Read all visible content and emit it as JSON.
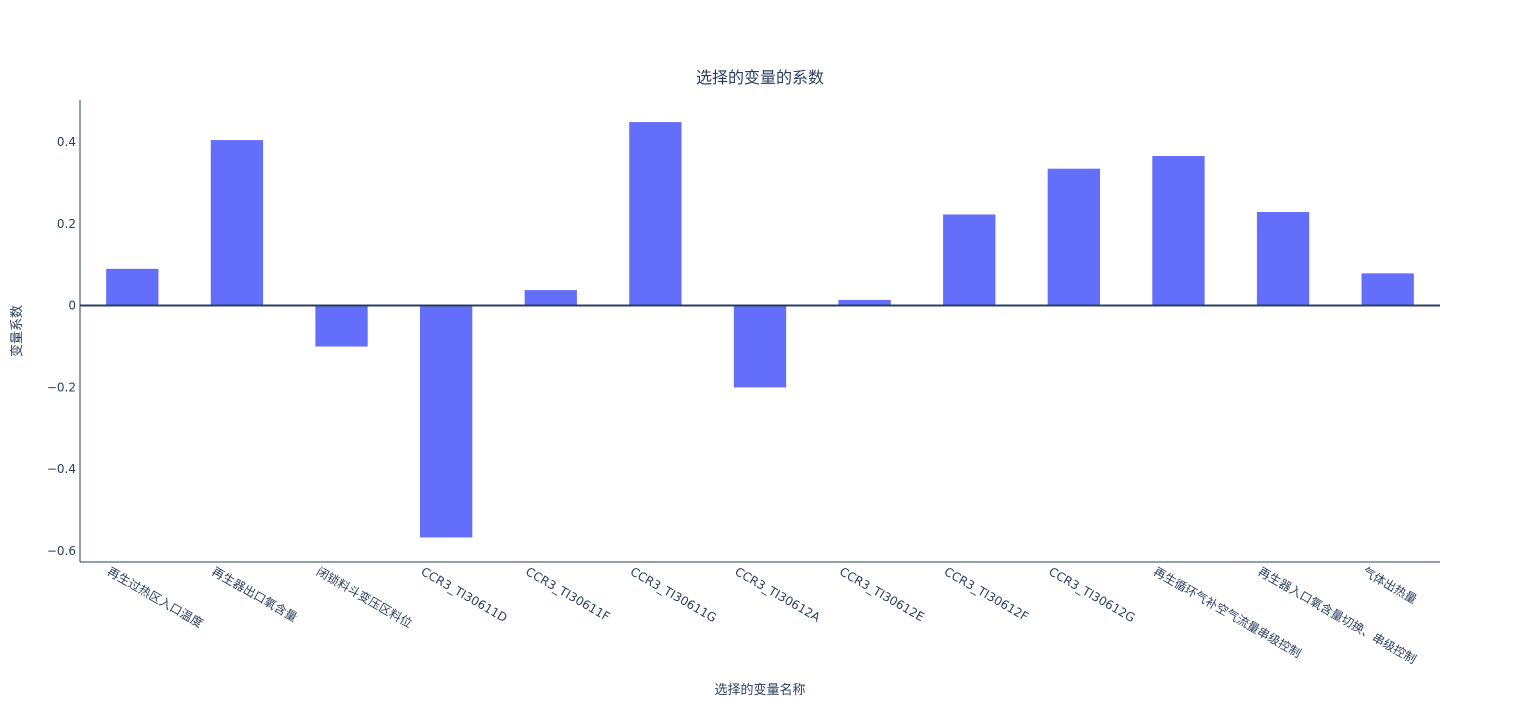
{
  "chart_data": {
    "type": "bar",
    "title": "选择的变量的系数",
    "xlabel": "选择的变量名称",
    "ylabel": "变量系数",
    "categories": [
      "再生过热区入口温度",
      "再生器出口氧含量",
      "闭锁料斗变压区料位",
      "CCR3_TI30611D",
      "CCR3_TI30611F",
      "CCR3_TI30611G",
      "CCR3_TI30612A",
      "CCR3_TI30612E",
      "CCR3_TI30612F",
      "CCR3_TI30612G",
      "再生循环气补空气流量串级控制",
      "再生器入口氧含量切换、串级控制",
      "气体出热量"
    ],
    "values": [
      0.09,
      0.405,
      -0.1,
      -0.567,
      0.038,
      0.449,
      -0.2,
      0.014,
      0.223,
      0.335,
      0.366,
      0.229,
      0.079
    ],
    "ylim": [
      -0.627,
      0.503
    ],
    "yticks": [
      -0.6,
      -0.4,
      -0.2,
      0,
      0.2,
      0.4
    ],
    "ytick_labels": [
      "−0.6",
      "−0.4",
      "−0.2",
      "0",
      "0.2",
      "0.4"
    ],
    "grid": false,
    "legend": "none",
    "bar_color": "#636efa",
    "axis_color": "#2a3f5f"
  }
}
